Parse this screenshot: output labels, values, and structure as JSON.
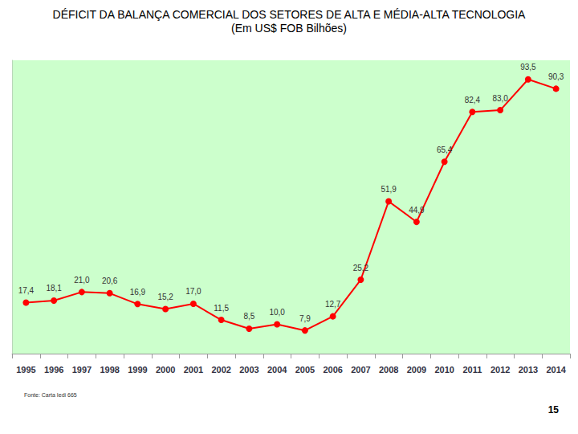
{
  "chart_data": {
    "type": "line",
    "title": "DÉFICIT DA BALANÇA COMERCIAL DOS SETORES DE ALTA E MÉDIA-ALTA TECNOLOGIA",
    "subtitle": "(Em US$ FOB Bilhões)",
    "categories": [
      "1995",
      "1996",
      "1997",
      "1998",
      "1999",
      "2000",
      "2001",
      "2002",
      "2003",
      "2004",
      "2005",
      "2006",
      "2007",
      "2008",
      "2009",
      "2010",
      "2011",
      "2012",
      "2013",
      "2014"
    ],
    "values": [
      17.4,
      18.1,
      21.0,
      20.6,
      16.9,
      15.2,
      17.0,
      11.5,
      8.5,
      10.0,
      7.9,
      12.7,
      25.2,
      51.9,
      44.9,
      65.4,
      82.4,
      83.0,
      93.5,
      90.3
    ],
    "value_labels": [
      "17,4",
      "18,1",
      "21,0",
      "20,6",
      "16,9",
      "15,2",
      "17,0",
      "11,5",
      "8,5",
      "10,0",
      "7,9",
      "12,7",
      "25,2",
      "51,9",
      "44,9",
      "65,4",
      "82,4",
      "83,0",
      "93,5",
      "90,3"
    ],
    "color": "#ff0000",
    "marker": "circle",
    "ylim": [
      0,
      100
    ],
    "grid": false,
    "data_labels": true,
    "tick_labels": "x",
    "source": "Fonte: Carta Iedi 665",
    "page_number": "15"
  }
}
